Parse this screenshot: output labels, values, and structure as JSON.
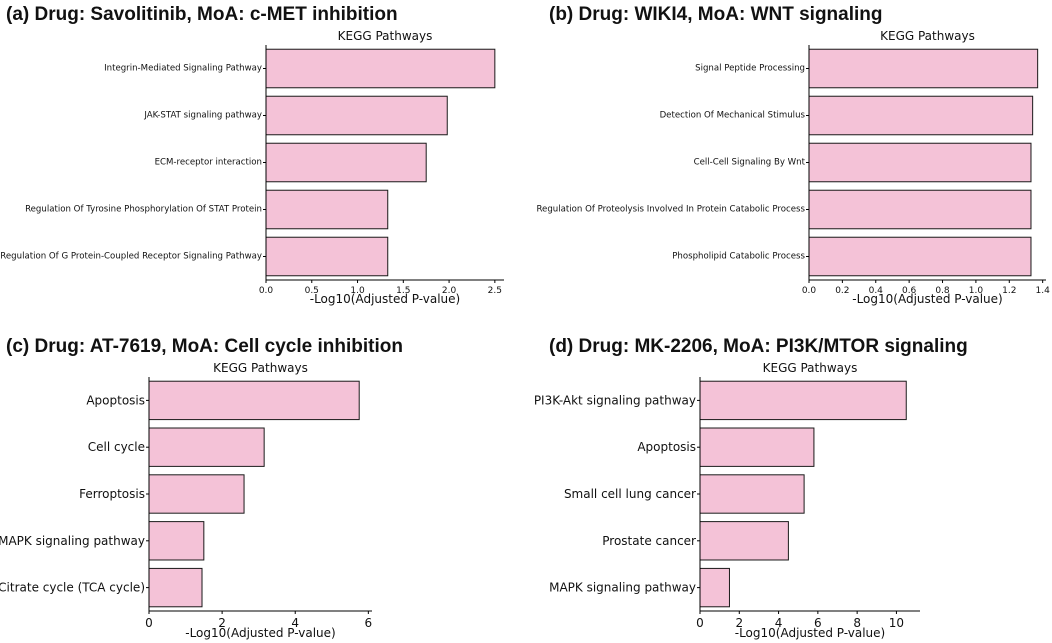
{
  "colors": {
    "bar_fill": "#f4c2d7",
    "bar_edge": "#1a1a1a",
    "axis": "#000000"
  },
  "chart_data": [
    {
      "id": "a",
      "type": "bar",
      "orientation": "horizontal",
      "panel_title": "(a) Drug: Savolitinib, MoA: c-MET inhibition",
      "title": "KEGG Pathways",
      "xlabel": "-Log10(Adjusted P-value)",
      "categories": [
        "Integrin-Mediated Signaling Pathway",
        "JAK-STAT signaling pathway",
        "ECM-receptor interaction",
        "Regulation Of Tyrosine Phosphorylation Of STAT Protein",
        "Regulation Of G Protein-Coupled Receptor Signaling Pathway"
      ],
      "values": [
        2.5,
        1.98,
        1.75,
        1.33,
        1.33
      ],
      "xlim": [
        0,
        2.6
      ],
      "xticks": [
        0.0,
        0.5,
        1.0,
        1.5,
        2.0,
        2.5
      ],
      "xtick_labels": [
        "0.0",
        "0.5",
        "1.0",
        "1.5",
        "2.0",
        "2.5"
      ]
    },
    {
      "id": "b",
      "type": "bar",
      "orientation": "horizontal",
      "panel_title": "(b) Drug: WIKI4, MoA: WNT signaling",
      "title": "KEGG Pathways",
      "xlabel": "-Log10(Adjusted P-value)",
      "categories": [
        "Signal Peptide Processing",
        "Detection Of Mechanical Stimulus",
        "Cell-Cell Signaling By Wnt",
        "Regulation Of Proteolysis Involved In Protein Catabolic Process",
        "Phospholipid Catabolic Process"
      ],
      "values": [
        1.37,
        1.34,
        1.33,
        1.33,
        1.33
      ],
      "xlim": [
        0,
        1.42
      ],
      "xticks": [
        0.0,
        0.2,
        0.4,
        0.6,
        0.8,
        1.0,
        1.2,
        1.4
      ],
      "xtick_labels": [
        "0.0",
        "0.2",
        "0.4",
        "0.6",
        "0.8",
        "1.0",
        "1.2",
        "1.4"
      ]
    },
    {
      "id": "c",
      "type": "bar",
      "orientation": "horizontal",
      "panel_title": "(c) Drug: AT-7619, MoA: Cell cycle inhibition",
      "title": "KEGG Pathways",
      "xlabel": "-Log10(Adjusted P-value)",
      "categories": [
        "Apoptosis",
        "Cell cycle",
        "Ferroptosis",
        "MAPK signaling pathway",
        "Citrate cycle (TCA cycle)"
      ],
      "values": [
        5.75,
        3.15,
        2.6,
        1.5,
        1.45
      ],
      "xlim": [
        0,
        6.1
      ],
      "xticks": [
        0,
        2,
        4,
        6
      ],
      "xtick_labels": [
        "0",
        "2",
        "4",
        "6"
      ]
    },
    {
      "id": "d",
      "type": "bar",
      "orientation": "horizontal",
      "panel_title": "(d) Drug: MK-2206, MoA: PI3K/MTOR signaling",
      "title": "KEGG Pathways",
      "xlabel": "-Log10(Adjusted P-value)",
      "categories": [
        "PI3K-Akt signaling pathway",
        "Apoptosis",
        "Small cell lung cancer",
        "Prostate cancer",
        "MAPK signaling pathway"
      ],
      "values": [
        10.5,
        5.8,
        5.3,
        4.5,
        1.5
      ],
      "xlim": [
        0,
        11.2
      ],
      "xticks": [
        0,
        2,
        4,
        6,
        8,
        10
      ],
      "xtick_labels": [
        "0",
        "2",
        "4",
        "6",
        "8",
        "10"
      ]
    }
  ]
}
